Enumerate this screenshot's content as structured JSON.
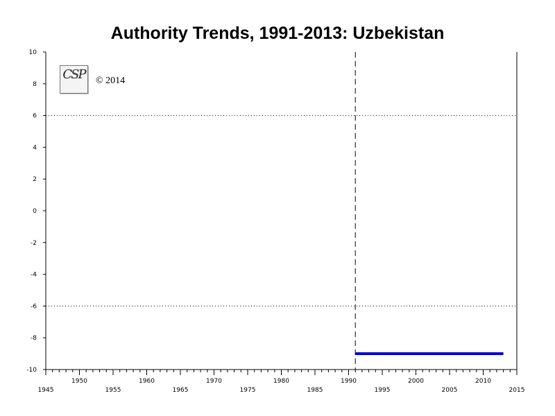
{
  "chart_data": {
    "type": "line",
    "title": "Authority Trends, 1991-2013: Uzbekistan",
    "logo_text": "CSP",
    "copyright": "© 2014",
    "xlim": [
      1945,
      2015
    ],
    "ylim": [
      -10,
      10
    ],
    "x_ticks_bottom": [
      1945,
      1955,
      1965,
      1975,
      1985,
      1995,
      2005,
      2015
    ],
    "x_ticks_top": [
      1950,
      1960,
      1970,
      1980,
      1990,
      2000,
      2010
    ],
    "y_ticks": [
      10,
      8,
      6,
      4,
      2,
      0,
      -2,
      -4,
      -6,
      -8,
      -10
    ],
    "reference_lines_dotted": [
      6,
      -6
    ],
    "marker_line_year": 1991,
    "series": [
      {
        "x": [
          1991,
          2013
        ],
        "y": [
          -9,
          -9
        ],
        "color": "#0000cc"
      }
    ],
    "colors": {
      "series": "#0000cc",
      "axis": "#000000"
    }
  }
}
